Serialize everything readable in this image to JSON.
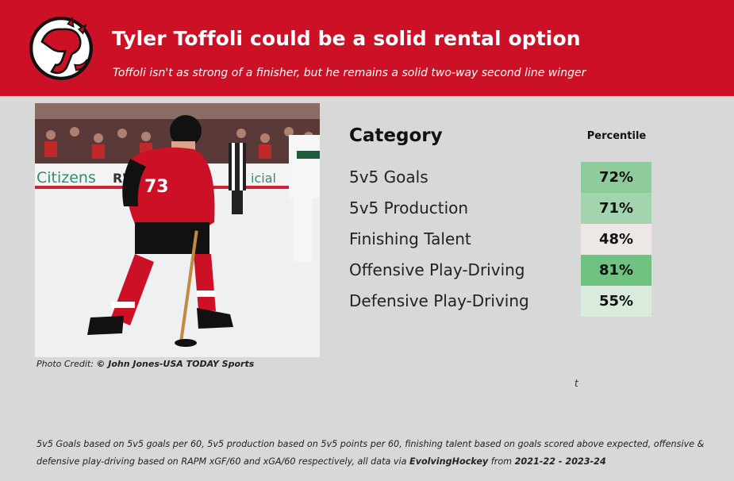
{
  "header": {
    "title": "Tyler Toffoli could be a solid rental option",
    "subtitle": "Toffoli isn't as strong of a finisher, but he remains a solid two-way second line winger",
    "logo_icon": "new-jersey-devils-logo"
  },
  "photo": {
    "jersey_number": "73",
    "board_text_1": "Citizens",
    "board_text_2": "RWJ",
    "board_text_3": "icial",
    "credit_prefix": "Photo Credit: ",
    "credit_name": "© John Jones-USA TODAY Sports"
  },
  "table": {
    "category_header": "Category",
    "percentile_header": "Percentile",
    "rows": [
      {
        "label": "5v5 Goals",
        "value": "72%",
        "color": "#8fcc9c"
      },
      {
        "label": "5v5 Production",
        "value": "71%",
        "color": "#a3d4ad"
      },
      {
        "label": "Finishing Talent",
        "value": "48%",
        "color": "#ede8e6"
      },
      {
        "label": "Offensive Play-Driving",
        "value": "81%",
        "color": "#6fc282"
      },
      {
        "label": "Defensive Play-Driving",
        "value": "55%",
        "color": "#d8ebdc"
      }
    ]
  },
  "stray_char": "t",
  "footnote": {
    "part1": "5v5 Goals based on 5v5 goals per 60, 5v5 production based on 5v5 points per 60, finishing talent based on goals scored above expected, offensive & defensive play-driving based on RAPM xGF/60 and xGA/60 respectively, all data via ",
    "source": "EvolvingHockey",
    "part2": " from ",
    "range": "2021-22 - 2023-24"
  },
  "colors": {
    "header_red": "#cc1126",
    "background": "#d8d8d8"
  }
}
